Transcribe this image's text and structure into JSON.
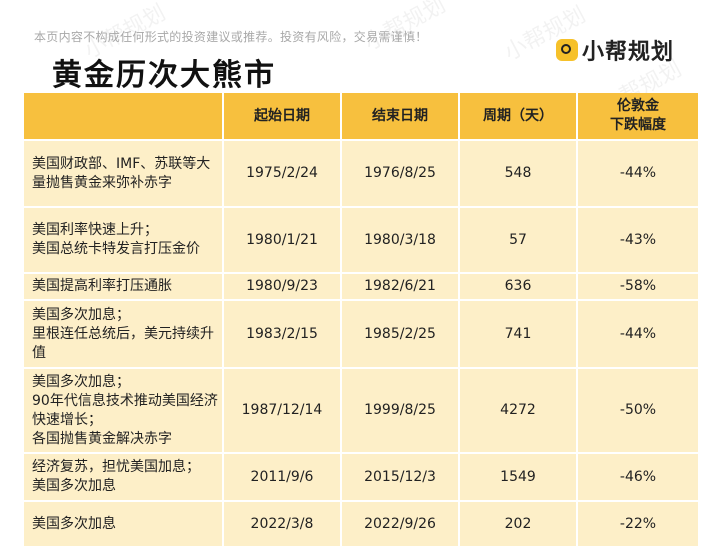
{
  "disclaimer": "本页内容不构成任何形式的投资建议或推荐。投资有风险，交易需谨慎！",
  "brand": {
    "name": "小帮规划",
    "logo_color": "#f6c12a"
  },
  "watermark": "小帮规划",
  "title": "黄金历次大熊市",
  "colors": {
    "header_bg": "#f7c03e",
    "cell_bg": "#fdefc8"
  },
  "table": {
    "headers": [
      "",
      "起始日期",
      "结束日期",
      "周期（天）",
      "伦敦金\n下跌幅度"
    ],
    "rows": [
      {
        "reason": "美国财政部、IMF、苏联等大量抛售黄金来弥补赤字",
        "start": "1975/2/24",
        "end": "1976/8/25",
        "days": "548",
        "drop": "-44%"
      },
      {
        "reason": "美国利率快速上升；\n美国总统卡特发言打压金价",
        "start": "1980/1/21",
        "end": "1980/3/18",
        "days": "57",
        "drop": "-43%"
      },
      {
        "reason": "美国提高利率打压通胀",
        "start": "1980/9/23",
        "end": "1982/6/21",
        "days": "636",
        "drop": "-58%"
      },
      {
        "reason": "美国多次加息；\n里根连任总统后，美元持续升值",
        "start": "1983/2/15",
        "end": "1985/2/25",
        "days": "741",
        "drop": "-44%"
      },
      {
        "reason": "美国多次加息；\n90年代信息技术推动美国经济快速增长；\n各国抛售黄金解决赤字",
        "start": "1987/12/14",
        "end": "1999/8/25",
        "days": "4272",
        "drop": "-50%"
      },
      {
        "reason": "经济复苏，担忧美国加息；\n美国多次加息",
        "start": "2011/9/6",
        "end": "2015/12/3",
        "days": "1549",
        "drop": "-46%"
      },
      {
        "reason": "美国多次加息",
        "start": "2022/3/8",
        "end": "2022/9/26",
        "days": "202",
        "drop": "-22%"
      }
    ]
  }
}
